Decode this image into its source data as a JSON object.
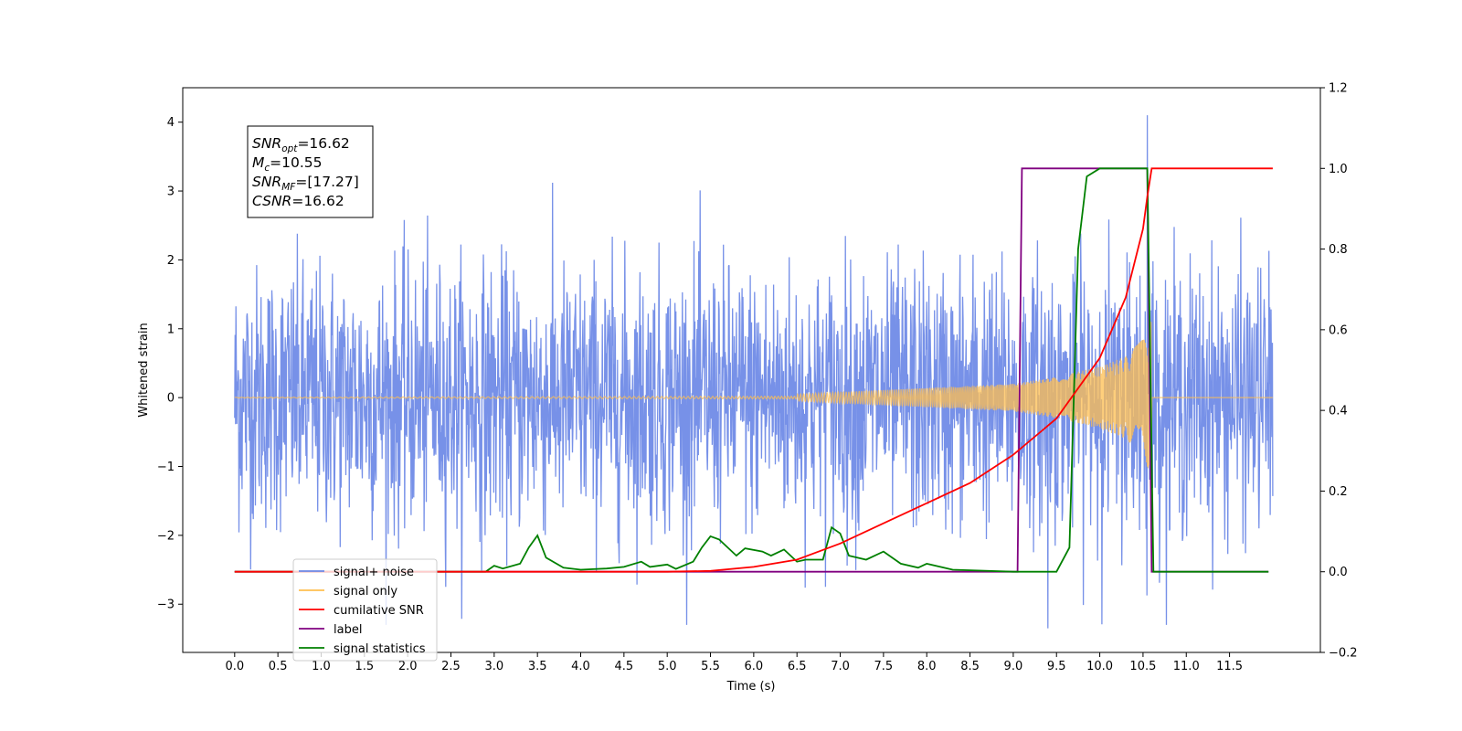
{
  "chart_data": {
    "type": "line",
    "xlabel": "Time (s)",
    "ylabel": "Whitened strain",
    "xlim": [
      -0.6,
      12.55
    ],
    "ylim_left": [
      -3.7,
      4.5
    ],
    "ylim_right": [
      -0.2,
      1.2
    ],
    "x_ticks": [
      "0.0",
      "0.5",
      "1.0",
      "1.5",
      "2.0",
      "2.5",
      "3.0",
      "3.5",
      "4.0",
      "4.5",
      "5.0",
      "5.5",
      "6.0",
      "6.5",
      "7.0",
      "7.5",
      "8.0",
      "8.5",
      "9.0",
      "9.5",
      "10.0",
      "10.5",
      "11.0",
      "11.5"
    ],
    "y_ticks_left": [
      "4",
      "3",
      "2",
      "1",
      "0",
      "−1",
      "−2",
      "−3"
    ],
    "y_ticks_right": [
      "1.2",
      "1.0",
      "0.8",
      "0.6",
      "0.4",
      "0.2",
      "0.0",
      "−0.2"
    ],
    "annotation": [
      {
        "base": "SNR",
        "sub": "opt",
        "value": "=16.62"
      },
      {
        "base": "M",
        "sub": "c",
        "value": "=10.55"
      },
      {
        "base": "SNR",
        "sub": "MF",
        "value": "=[17.27]"
      },
      {
        "base": "CSNR",
        "sub": "",
        "value": "=16.62"
      }
    ],
    "legend": {
      "placement": "lower-left",
      "entries": [
        {
          "label": "signal+ noise",
          "color": "#6b88e6"
        },
        {
          "label": "signal only",
          "color": "#ffbf50"
        },
        {
          "label": "cumilative SNR",
          "color": "#ff0000"
        },
        {
          "label": "label",
          "color": "#800080"
        },
        {
          "label": "signal statistics",
          "color": "#008000"
        }
      ]
    },
    "series": [
      {
        "name": "signal+ noise",
        "axis": "left",
        "color": "#6b88e6",
        "description": "white noise with std about 1.0 from t=0.0 to t=12.0, plus chirp signal; peak about 4.1 at t=10.55, min about -3.35 at t=9.4"
      },
      {
        "name": "signal only",
        "axis": "left",
        "color": "#ffbf50",
        "chirp": {
          "start": 0.0,
          "end": 10.6,
          "amplitude_at": [
            [
              6.5,
              0.05
            ],
            [
              9.0,
              0.2
            ],
            [
              9.5,
              0.3
            ],
            [
              10.0,
              0.45
            ],
            [
              10.3,
              0.6
            ],
            [
              10.5,
              0.85
            ],
            [
              10.58,
              1.1
            ]
          ]
        }
      },
      {
        "name": "cumilative SNR",
        "axis": "right",
        "color": "#ff0000",
        "x": [
          0.0,
          5.0,
          5.5,
          6.0,
          6.5,
          7.0,
          7.5,
          8.0,
          8.5,
          9.0,
          9.5,
          10.0,
          10.3,
          10.5,
          10.55,
          10.6,
          12.0
        ],
        "y": [
          0.0,
          0.0,
          0.002,
          0.012,
          0.03,
          0.07,
          0.12,
          0.17,
          0.22,
          0.29,
          0.38,
          0.53,
          0.68,
          0.85,
          0.93,
          1.0,
          1.0
        ]
      },
      {
        "name": "label",
        "axis": "right",
        "color": "#800080",
        "x": [
          0.0,
          9.05,
          9.1,
          10.55,
          10.6,
          11.95
        ],
        "y": [
          0.0,
          0.0,
          1.0,
          1.0,
          0.0,
          0.0
        ]
      },
      {
        "name": "signal statistics",
        "axis": "right",
        "color": "#008000",
        "x": [
          0.0,
          2.9,
          3.0,
          3.1,
          3.3,
          3.4,
          3.5,
          3.6,
          3.8,
          4.0,
          4.3,
          4.5,
          4.7,
          4.8,
          5.0,
          5.1,
          5.3,
          5.4,
          5.5,
          5.6,
          5.8,
          5.9,
          6.1,
          6.2,
          6.35,
          6.5,
          6.6,
          6.8,
          6.9,
          7.0,
          7.1,
          7.3,
          7.5,
          7.7,
          7.9,
          8.0,
          8.3,
          9.0,
          9.5,
          9.65,
          9.75,
          9.85,
          10.0,
          10.3,
          10.55,
          10.62,
          11.95
        ],
        "y": [
          0.0,
          0.0,
          0.015,
          0.008,
          0.02,
          0.06,
          0.09,
          0.035,
          0.01,
          0.005,
          0.008,
          0.012,
          0.025,
          0.012,
          0.018,
          0.007,
          0.025,
          0.06,
          0.088,
          0.08,
          0.04,
          0.058,
          0.05,
          0.04,
          0.055,
          0.025,
          0.03,
          0.03,
          0.11,
          0.095,
          0.04,
          0.03,
          0.05,
          0.02,
          0.01,
          0.02,
          0.005,
          0.0,
          0.0,
          0.06,
          0.8,
          0.98,
          1.0,
          1.0,
          1.0,
          0.0,
          0.0
        ]
      }
    ]
  }
}
